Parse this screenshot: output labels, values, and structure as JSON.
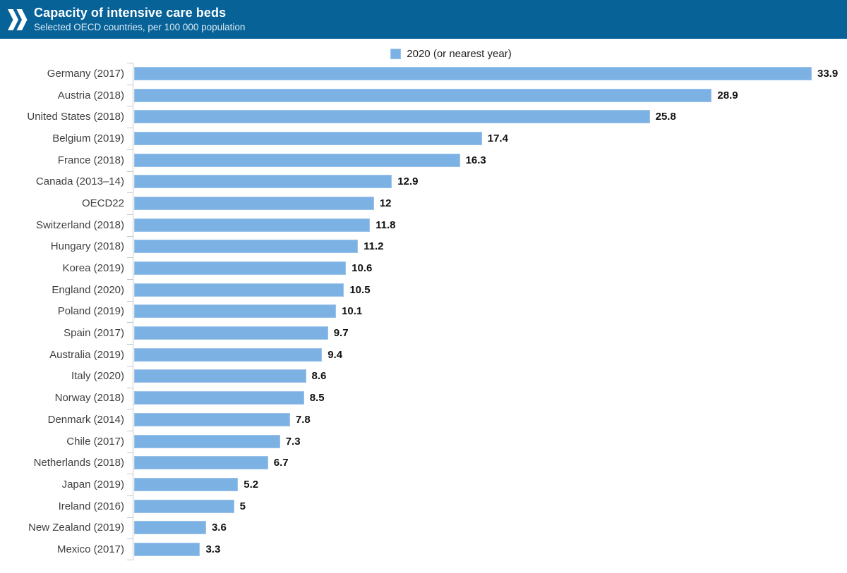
{
  "header": {
    "title": "Capacity of intensive care beds",
    "subtitle": "Selected OECD countries, per 100 000 population",
    "logo": "oecd-double-chevron-logo"
  },
  "legend": {
    "label": "2020 (or nearest year)"
  },
  "colors": {
    "header_bg": "#076298",
    "header_text": "#ffffff",
    "bar_fill": "#7CB1E3",
    "bar_border": "#9DC4EA",
    "axis_line": "#c8c8c8",
    "category_text": "#3f3f3f",
    "value_text": "#111111",
    "legend_text": "#222222"
  },
  "chart_data": {
    "type": "bar",
    "orientation": "horizontal",
    "title": "Capacity of intensive care beds",
    "subtitle": "Selected OECD countries, per 100 000 population",
    "series_name": "2020 (or nearest year)",
    "unit": "beds per 100 000 population",
    "categories": [
      "Germany (2017)",
      "Austria (2018)",
      "United States (2018)",
      "Belgium (2019)",
      "France (2018)",
      "Canada (2013–14)",
      "OECD22",
      "Switzerland (2018)",
      "Hungary (2018)",
      "Korea (2019)",
      "England (2020)",
      "Poland (2019)",
      "Spain (2017)",
      "Australia (2019)",
      "Italy (2020)",
      "Norway (2018)",
      "Denmark (2014)",
      "Chile (2017)",
      "Netherlands (2018)",
      "Japan (2019)",
      "Ireland (2016)",
      "New Zealand (2019)",
      "Mexico (2017)"
    ],
    "values": [
      33.9,
      28.9,
      25.8,
      17.4,
      16.3,
      12.9,
      12,
      11.8,
      11.2,
      10.6,
      10.5,
      10.1,
      9.7,
      9.4,
      8.6,
      8.5,
      7.8,
      7.3,
      6.7,
      5.2,
      5,
      3.6,
      3.3
    ],
    "xlim": [
      0,
      35.6
    ],
    "grid": false,
    "legend_position": "top-center",
    "value_labels": "end-of-bar"
  }
}
